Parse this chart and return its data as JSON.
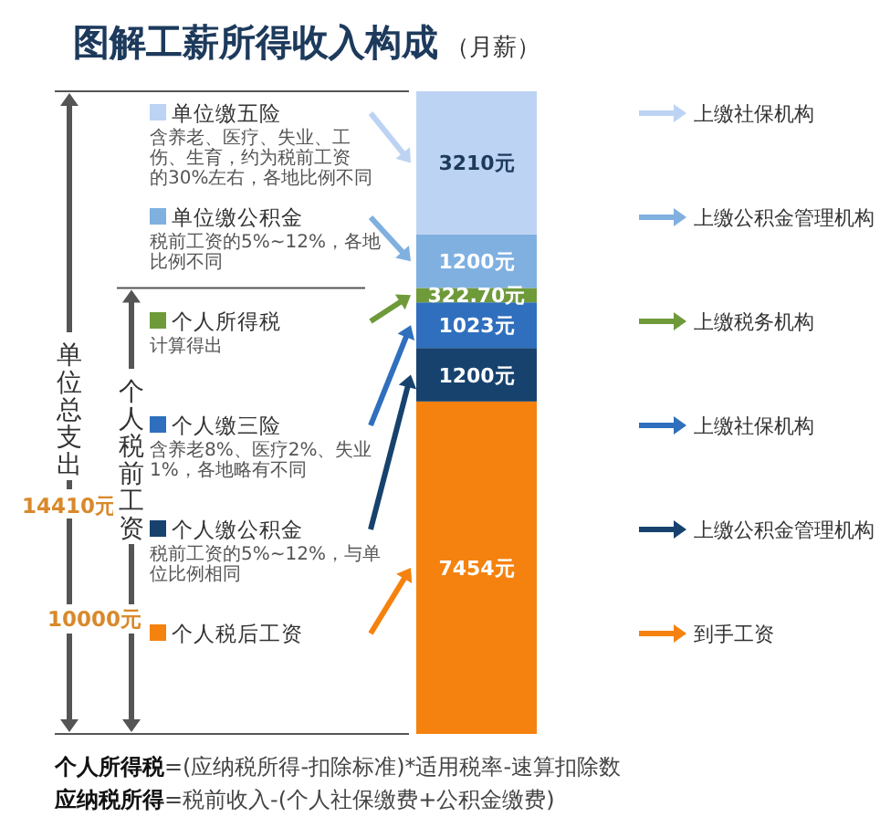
{
  "chart_data": {
    "type": "bar",
    "stacked": true,
    "legend": "left",
    "data_labels": true,
    "title": "图解工薪所得收入构成",
    "subtitle": "（月薪）",
    "categories": [
      null
    ],
    "series": [
      {
        "name": "个人税后工资",
        "color": "#f5820f",
        "values": [
          7454
        ],
        "value_labels": [
          "7454元"
        ]
      },
      {
        "name": "个人缴公积金",
        "color": "#17426e",
        "values": [
          1200
        ],
        "value_labels": [
          "1200元"
        ]
      },
      {
        "name": "个人缴三险",
        "color": "#2f6fbd",
        "values": [
          1023
        ],
        "value_labels": [
          "1023元"
        ]
      },
      {
        "name": "个人所得税",
        "color": "#6f9a3a",
        "values": [
          322.7
        ],
        "value_labels": [
          "322.70元"
        ]
      },
      {
        "name": "单位缴公积金",
        "color": "#7fb0e0",
        "values": [
          1200
        ],
        "value_labels": [
          "1200元"
        ]
      },
      {
        "name": "单位缴五险",
        "color": "#bcd3f3",
        "values": [
          3210
        ],
        "value_labels": [
          "3210元"
        ]
      }
    ],
    "annotations": [
      "单位总支出",
      "14410元",
      "个人税前工资",
      "10000元",
      "到手工资",
      "上缴公积金管理机构",
      "上缴社保机构",
      "上缴税务机构",
      "上缴公积金管理机构",
      "上缴社保机构",
      "税前工资的5%~12%，与单位比例相同",
      "含养老8%、医疗2%、失业1%，各地略有不同",
      "计算得出",
      "税前工资的5%~12%，各地比例不同",
      "含养老、医疗、失业、工伤、生育，约为税前工资的30%左右，各地比例不同",
      "**个人所得税**=(应纳税所得-扣除标准)*适用税率-速算扣除数",
      "**应纳税所得**=税前收入-(个人社保缴费+公积金缴费)"
    ]
  }
}
